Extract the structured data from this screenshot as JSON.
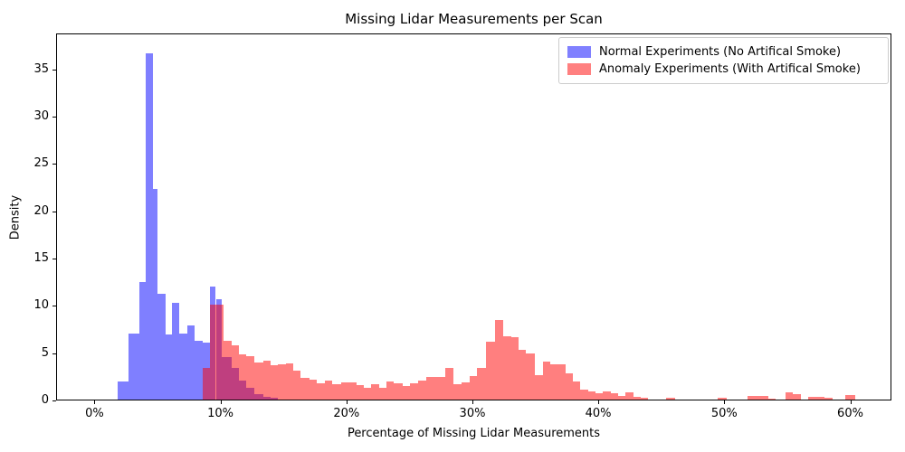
{
  "title": "Missing Lidar Measurements per Scan",
  "xlabel": "Percentage of Missing Lidar Measurements",
  "ylabel": "Density",
  "legend": {
    "items": [
      {
        "label": "Normal Experiments (No Artifical Smoke)",
        "color": "#8080ff"
      },
      {
        "label": "Anomaly Experiments (With Artifical Smoke)",
        "color": "#ff8080"
      }
    ]
  },
  "chart_data": {
    "type": "bar",
    "subtype": "overlapping-histogram",
    "title": "Missing Lidar Measurements per Scan",
    "xlabel": "Percentage of Missing Lidar Measurements",
    "ylabel": "Density",
    "grid": false,
    "legend_position": "upper right",
    "xlim": [
      -3.05,
      63.27
    ],
    "ylim": [
      0,
      38.8
    ],
    "x_tick_values": [
      0,
      10,
      20,
      30,
      40,
      50,
      60
    ],
    "x_tick_labels": [
      "0%",
      "10%",
      "20%",
      "30%",
      "40%",
      "50%",
      "60%"
    ],
    "y_ticks": [
      0,
      5,
      10,
      15,
      20,
      25,
      30,
      35
    ],
    "bar_unit": "percent of missing lidar measurements; bars given as [x_start, x_end, density]",
    "series": [
      {
        "name": "Normal Experiments (No Artifical Smoke)",
        "color": "rgba(0,0,255,0.5)",
        "bars": [
          [
            1.76,
            2.64,
            1.9
          ],
          [
            2.64,
            3.5,
            7.0
          ],
          [
            3.5,
            4.0,
            12.4
          ],
          [
            4.0,
            4.55,
            36.6
          ],
          [
            4.55,
            4.95,
            22.3
          ],
          [
            4.95,
            5.55,
            11.2
          ],
          [
            5.55,
            6.1,
            6.9
          ],
          [
            6.1,
            6.67,
            10.2
          ],
          [
            6.67,
            7.3,
            7.0
          ],
          [
            7.3,
            7.9,
            7.8
          ],
          [
            7.9,
            8.53,
            6.25
          ],
          [
            8.53,
            9.1,
            6.0
          ],
          [
            9.1,
            9.56,
            11.9
          ],
          [
            9.56,
            10.02,
            10.6
          ],
          [
            10.02,
            10.8,
            4.45
          ],
          [
            10.8,
            11.4,
            3.3
          ],
          [
            11.4,
            12.0,
            2.0
          ],
          [
            12.0,
            12.6,
            1.2
          ],
          [
            12.6,
            13.3,
            0.6
          ],
          [
            13.3,
            13.9,
            0.3
          ],
          [
            13.9,
            14.5,
            0.15
          ]
        ]
      },
      {
        "name": "Anomaly Experiments (With Artifical Smoke)",
        "color": "rgba(255,0,0,0.5)",
        "bars": [
          [
            8.5,
            9.1,
            3.3
          ],
          [
            9.1,
            10.2,
            10.0
          ],
          [
            10.2,
            10.8,
            6.2
          ],
          [
            10.8,
            11.4,
            5.7
          ],
          [
            11.4,
            12.0,
            4.8
          ],
          [
            12.0,
            12.6,
            4.6
          ],
          [
            12.6,
            13.3,
            3.9
          ],
          [
            13.3,
            13.9,
            4.1
          ],
          [
            13.9,
            14.5,
            3.65
          ],
          [
            14.5,
            15.1,
            3.7
          ],
          [
            15.1,
            15.7,
            3.8
          ],
          [
            15.7,
            16.3,
            3.1
          ],
          [
            16.3,
            17.0,
            2.3
          ],
          [
            17.0,
            17.6,
            2.1
          ],
          [
            17.6,
            18.2,
            1.75
          ],
          [
            18.2,
            18.8,
            2.0
          ],
          [
            18.8,
            19.5,
            1.65
          ],
          [
            19.5,
            20.1,
            1.8
          ],
          [
            20.1,
            20.7,
            1.8
          ],
          [
            20.7,
            21.3,
            1.5
          ],
          [
            21.3,
            21.9,
            1.2
          ],
          [
            21.9,
            22.5,
            1.6
          ],
          [
            22.5,
            23.1,
            1.2
          ],
          [
            23.1,
            23.7,
            1.95
          ],
          [
            23.7,
            24.4,
            1.75
          ],
          [
            24.4,
            25.0,
            1.4
          ],
          [
            25.0,
            25.6,
            1.75
          ],
          [
            25.6,
            26.3,
            2.0
          ],
          [
            26.3,
            27.0,
            2.4
          ],
          [
            27.0,
            27.8,
            2.4
          ],
          [
            27.8,
            28.4,
            3.3
          ],
          [
            28.4,
            29.1,
            1.6
          ],
          [
            29.1,
            29.7,
            1.8
          ],
          [
            29.7,
            30.3,
            2.5
          ],
          [
            30.3,
            31.0,
            3.35
          ],
          [
            31.0,
            31.7,
            6.1
          ],
          [
            31.7,
            32.4,
            8.4
          ],
          [
            32.4,
            33.0,
            6.7
          ],
          [
            33.0,
            33.6,
            6.6
          ],
          [
            33.6,
            34.2,
            5.25
          ],
          [
            34.2,
            34.9,
            4.9
          ],
          [
            34.9,
            35.5,
            2.55
          ],
          [
            35.5,
            36.1,
            4.0
          ],
          [
            36.1,
            36.7,
            3.7
          ],
          [
            36.7,
            37.3,
            3.75
          ],
          [
            37.3,
            37.9,
            2.8
          ],
          [
            37.9,
            38.5,
            1.9
          ],
          [
            38.5,
            39.1,
            1.1
          ],
          [
            39.1,
            39.7,
            0.9
          ],
          [
            39.7,
            40.3,
            0.65
          ],
          [
            40.3,
            40.9,
            0.85
          ],
          [
            40.9,
            41.5,
            0.65
          ],
          [
            41.5,
            42.1,
            0.4
          ],
          [
            42.1,
            42.7,
            0.8
          ],
          [
            42.7,
            43.3,
            0.25
          ],
          [
            43.3,
            43.9,
            0.15
          ],
          [
            45.3,
            46.0,
            0.15
          ],
          [
            49.4,
            50.1,
            0.2
          ],
          [
            51.8,
            52.4,
            0.35
          ],
          [
            52.4,
            53.4,
            0.42
          ],
          [
            53.4,
            54.0,
            0.1
          ],
          [
            54.8,
            55.4,
            0.75
          ],
          [
            55.4,
            56.0,
            0.55
          ],
          [
            56.6,
            57.9,
            0.32
          ],
          [
            57.9,
            58.5,
            0.15
          ],
          [
            59.5,
            60.3,
            0.45
          ]
        ]
      }
    ]
  }
}
